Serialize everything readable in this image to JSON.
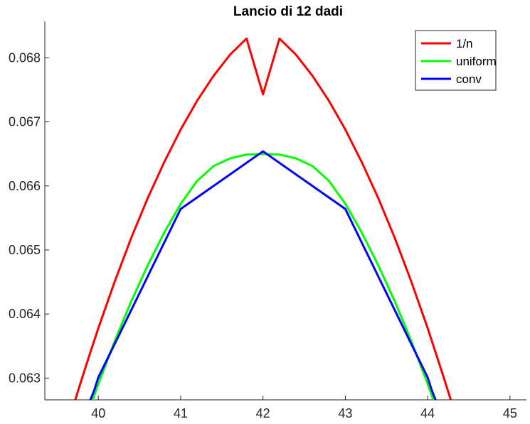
{
  "chart_data": {
    "type": "line",
    "title": "Lancio di 12 dadi",
    "xlabel": "",
    "ylabel": "",
    "xlim": [
      39.35,
      45.2
    ],
    "ylim": [
      0.06266,
      0.06857
    ],
    "xticks": [
      "40",
      "41",
      "42",
      "43",
      "44",
      "45"
    ],
    "yticks": [
      "0.063",
      "0.064",
      "0.065",
      "0.066",
      "0.067",
      "0.068"
    ],
    "grid": false,
    "legend_position": "top-right",
    "series": [
      {
        "name": "1/n",
        "color": "#ff0000",
        "x": [
          39.7,
          39.8,
          39.9,
          40.0,
          40.2,
          40.4,
          40.6,
          40.8,
          41.0,
          41.2,
          41.4,
          41.6,
          41.8,
          42.0,
          42.2,
          42.4,
          42.6,
          42.8,
          43.0,
          43.2,
          43.4,
          43.6,
          43.8,
          44.0,
          44.2,
          44.3
        ],
        "y": [
          0.06258,
          0.06299,
          0.06339,
          0.06378,
          0.06451,
          0.06519,
          0.06581,
          0.06637,
          0.06688,
          0.06733,
          0.06772,
          0.06805,
          0.0683,
          0.06743,
          0.0683,
          0.06805,
          0.06772,
          0.06733,
          0.06688,
          0.06637,
          0.06581,
          0.06519,
          0.06451,
          0.06378,
          0.06299,
          0.06258
        ]
      },
      {
        "name": "uniform",
        "color": "#00ff00",
        "x": [
          39.9,
          40.0,
          40.2,
          40.4,
          40.6,
          40.8,
          41.0,
          41.2,
          41.4,
          41.6,
          41.8,
          42.0,
          42.2,
          42.4,
          42.6,
          42.8,
          43.0,
          43.2,
          43.4,
          43.6,
          43.8,
          44.0,
          44.1
        ],
        "y": [
          0.06255,
          0.06291,
          0.06358,
          0.0642,
          0.06476,
          0.06527,
          0.06572,
          0.06608,
          0.06631,
          0.06643,
          0.06649,
          0.0665,
          0.06649,
          0.06643,
          0.06631,
          0.06608,
          0.06572,
          0.06527,
          0.06476,
          0.0642,
          0.06358,
          0.06291,
          0.06255
        ]
      },
      {
        "name": "conv",
        "color": "#0000ff",
        "x": [
          39.87,
          39.95,
          40.0,
          41.0,
          42.0,
          43.0,
          44.0,
          44.05,
          44.13
        ],
        "y": [
          0.06255,
          0.06281,
          0.06301,
          0.06564,
          0.06654,
          0.06564,
          0.06301,
          0.06281,
          0.06255
        ]
      }
    ]
  }
}
